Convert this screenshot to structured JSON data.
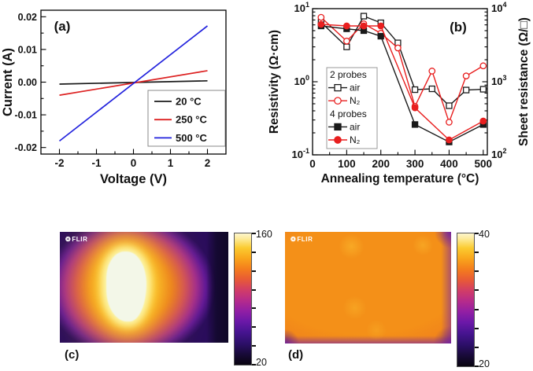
{
  "icons": {
    "flir_logo_glyph": "❂"
  },
  "chart_data": [
    {
      "id": "a",
      "type": "line",
      "panel_label": "(a)",
      "xlabel": "Voltage (V)",
      "ylabel": "Current (A)",
      "xlim": [
        -2.5,
        2.5
      ],
      "ylim": [
        -0.022,
        0.022
      ],
      "xticks": [
        -2,
        -1,
        0,
        1,
        2
      ],
      "xtick_labels": [
        "-2",
        "-1",
        "0",
        "1",
        "2"
      ],
      "yticks": [
        0.02,
        0.01,
        0,
        -0.01,
        -0.02
      ],
      "ytick_labels": [
        "0.02",
        "0.01",
        "0.00",
        "-0.01",
        "-0.02"
      ],
      "grid": false,
      "legend_position": "bottom-right",
      "series": [
        {
          "name": "20 °C",
          "color": "#1a1a1a",
          "x": [
            -2,
            2
          ],
          "y": [
            -0.0006,
            0.0004
          ]
        },
        {
          "name": "250 °C",
          "color": "#dd2222",
          "x": [
            -2,
            2
          ],
          "y": [
            -0.004,
            0.0035
          ]
        },
        {
          "name": "500 °C",
          "color": "#2222dd",
          "x": [
            -2,
            2
          ],
          "y": [
            -0.018,
            0.0172
          ]
        }
      ]
    },
    {
      "id": "b",
      "type": "scatter-line",
      "panel_label": "(b)",
      "xlabel": "Annealing temperature (°C)",
      "ylabel": "Resistivity (Ω·cm)",
      "ylabel_right": "Sheet resistance (Ω/□)",
      "xlim": [
        0,
        512
      ],
      "xticks": [
        0,
        100,
        200,
        300,
        400,
        500
      ],
      "xtick_labels": [
        "0",
        "100",
        "200",
        "300",
        "400",
        "500"
      ],
      "yscale": "log",
      "ylim": [
        0.1,
        10
      ],
      "ytick_exponents": [
        1,
        0,
        -1
      ],
      "y2lim": [
        100,
        10000
      ],
      "y2tick_exponents": [
        4,
        3,
        2
      ],
      "legend": {
        "group1": "2 probes",
        "group2": "4 probes",
        "air": "air",
        "n2": "N₂"
      },
      "series": [
        {
          "name": "2 probes air",
          "marker": "square-open",
          "color": "#1a1a1a",
          "x": [
            25,
            100,
            150,
            200,
            250,
            300,
            350,
            400,
            450,
            500
          ],
          "y": [
            6.5,
            3.0,
            7.9,
            6.4,
            3.4,
            0.78,
            0.8,
            0.47,
            0.77,
            0.79
          ]
        },
        {
          "name": "2 probes N₂",
          "marker": "circle-open",
          "color": "#e81f1f",
          "x": [
            25,
            100,
            150,
            200,
            250,
            300,
            350,
            400,
            450,
            500
          ],
          "y": [
            7.6,
            3.6,
            6.2,
            4.6,
            2.9,
            0.46,
            1.4,
            0.28,
            1.2,
            1.65
          ]
        },
        {
          "name": "4 probes air",
          "marker": "square-filled",
          "color": "#1a1a1a",
          "x": [
            25,
            100,
            150,
            200,
            300,
            400,
            500
          ],
          "y": [
            5.8,
            5.3,
            5.0,
            4.2,
            0.26,
            0.15,
            0.26
          ]
        },
        {
          "name": "4 probes N₂",
          "marker": "circle-filled",
          "color": "#e81f1f",
          "x": [
            25,
            100,
            150,
            200,
            300,
            400,
            500
          ],
          "y": [
            6.1,
            5.8,
            5.8,
            5.8,
            0.44,
            0.16,
            0.29
          ]
        }
      ]
    },
    {
      "id": "c",
      "type": "heatmap",
      "panel_label": "(c)",
      "logo": "FLIR",
      "colorbar": {
        "max_label": "160",
        "min_label": "20"
      },
      "description": "Thermal image with bright white-hot elliptical spot at center fading through yellow, orange and magenta to dark purple edges, with a dark cold band at the right side."
    },
    {
      "id": "d",
      "type": "heatmap",
      "panel_label": "(d)",
      "logo": "FLIR",
      "colorbar": {
        "max_label": "40",
        "min_label": "20"
      },
      "description": "Thermal image of a nearly uniform warm orange surface with magenta-purple borders and dark purple corners."
    }
  ]
}
